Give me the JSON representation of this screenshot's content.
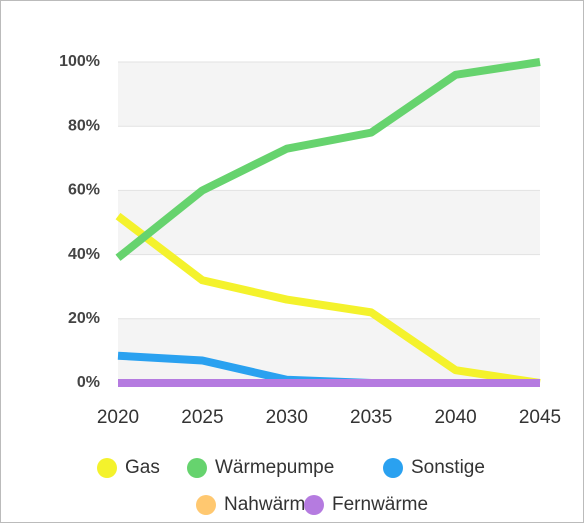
{
  "chart_data": {
    "type": "line",
    "x": [
      2020,
      2025,
      2030,
      2035,
      2040,
      2045
    ],
    "xlim": [
      2020,
      2045
    ],
    "xticks": [
      2020,
      2025,
      2030,
      2035,
      2040,
      2045
    ],
    "ylim": [
      0,
      100
    ],
    "yticks": [
      {
        "value": 0,
        "label": "0%"
      },
      {
        "value": 20,
        "label": "20%"
      },
      {
        "value": 40,
        "label": "40%"
      },
      {
        "value": 60,
        "label": "60%"
      },
      {
        "value": 80,
        "label": "80%"
      },
      {
        "value": 100,
        "label": "100%"
      }
    ],
    "grid": true,
    "legend": "bottom",
    "series": [
      {
        "name": "Gas",
        "color": "#f4f22c",
        "values": [
          52,
          32,
          26,
          22,
          4,
          0
        ]
      },
      {
        "name": "Wärmepumpe",
        "color": "#66d36e",
        "values": [
          39,
          60,
          73,
          78,
          96,
          100
        ]
      },
      {
        "name": "Sonstige",
        "color": "#2aa1f0",
        "values": [
          8.5,
          7,
          1,
          0,
          0,
          0
        ]
      },
      {
        "name": "Nahwärme",
        "color": "#ffc870",
        "values": [
          0,
          0,
          0,
          0,
          0,
          0
        ]
      },
      {
        "name": "Fernwärme",
        "color": "#b57be0",
        "values": [
          0,
          0,
          0,
          0,
          0,
          0
        ]
      }
    ]
  }
}
